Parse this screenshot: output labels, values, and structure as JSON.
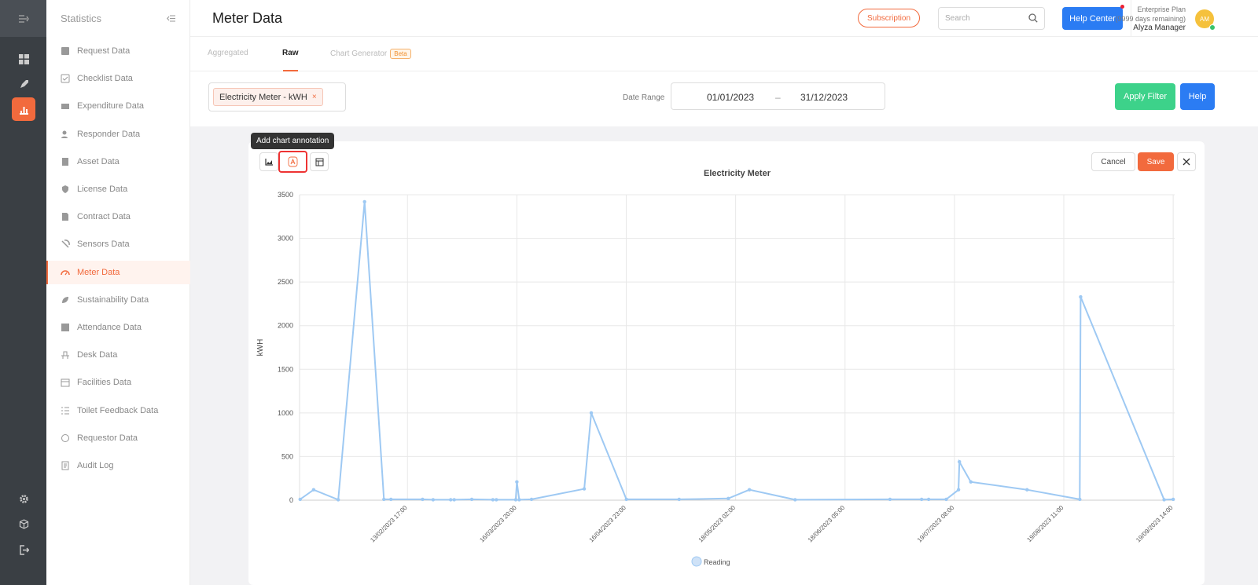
{
  "sidebar": {
    "title": "Statistics",
    "items": [
      {
        "label": "Request Data",
        "icon": "request-icon"
      },
      {
        "label": "Checklist Data",
        "icon": "checklist-icon"
      },
      {
        "label": "Expenditure Data",
        "icon": "expenditure-icon"
      },
      {
        "label": "Responder Data",
        "icon": "responder-icon"
      },
      {
        "label": "Asset Data",
        "icon": "asset-icon"
      },
      {
        "label": "License Data",
        "icon": "shield-icon"
      },
      {
        "label": "Contract Data",
        "icon": "contract-icon"
      },
      {
        "label": "Sensors Data",
        "icon": "sensor-icon"
      },
      {
        "label": "Meter Data",
        "icon": "gauge-icon",
        "active": true
      },
      {
        "label": "Sustainability Data",
        "icon": "leaf-icon"
      },
      {
        "label": "Attendance Data",
        "icon": "attendance-icon"
      },
      {
        "label": "Desk Data",
        "icon": "desk-icon"
      },
      {
        "label": "Facilities Data",
        "icon": "calendar-icon"
      },
      {
        "label": "Toilet Feedback Data",
        "icon": "list-icon"
      },
      {
        "label": "Requestor Data",
        "icon": "requestor-icon"
      },
      {
        "label": "Audit Log",
        "icon": "audit-icon"
      }
    ]
  },
  "header": {
    "title": "Meter Data",
    "subscription": "Subscription",
    "search_placeholder": "Search",
    "help_center": "Help Center",
    "plan": "Enterprise Plan",
    "plan_days": "(9999 days remaining)",
    "user": "Alyza Manager",
    "avatar": "AM"
  },
  "tabs": {
    "aggregated": "Aggregated",
    "raw": "Raw",
    "chart_generator": "Chart Generator",
    "beta": "Beta"
  },
  "filter": {
    "chip": "Electricity Meter - kWH",
    "chip_remove": "×",
    "date_range_label": "Date Range",
    "date_from": "01/01/2023",
    "date_sep": "–",
    "date_to": "31/12/2023",
    "apply": "Apply Filter",
    "help": "Help"
  },
  "chart_toolbar": {
    "tooltip": "Add chart annotation",
    "cancel": "Cancel",
    "save": "Save"
  },
  "colors": {
    "accent": "#f26a3d",
    "primary": "#2b7cf3",
    "success": "#3dd28a",
    "line": "#9ec9f3"
  },
  "chart_data": {
    "type": "line",
    "title": "Electricity Meter",
    "xlabel": "",
    "ylabel": "kWH",
    "ylim": [
      0,
      3500
    ],
    "yticks": [
      0,
      500,
      1000,
      1500,
      2000,
      2500,
      3000,
      3500
    ],
    "x_ticks": [
      "13/02/2023 17:00",
      "16/03/2023 20:00",
      "16/04/2023 23:00",
      "18/05/2023 02:00",
      "18/06/2023 05:00",
      "19/07/2023 08:00",
      "19/08/2023 11:00",
      "19/09/2023 14:00"
    ],
    "x_range": [
      "2023-01-14T00:00",
      "2023-09-20T00:00"
    ],
    "legend": [
      "Reading"
    ],
    "legend_position": "bottom",
    "grid": true,
    "series": [
      {
        "name": "Reading",
        "points": [
          {
            "x": "2023-01-14T04:00",
            "y": 10
          },
          {
            "x": "2023-01-18T00:00",
            "y": 120
          },
          {
            "x": "2023-01-25T00:00",
            "y": 5
          },
          {
            "x": "2023-02-01T12:00",
            "y": 3420
          },
          {
            "x": "2023-02-07T00:00",
            "y": 10
          },
          {
            "x": "2023-02-09T00:00",
            "y": 10
          },
          {
            "x": "2023-02-18T00:00",
            "y": 10
          },
          {
            "x": "2023-02-21T00:00",
            "y": 5
          },
          {
            "x": "2023-02-26T00:00",
            "y": 5
          },
          {
            "x": "2023-02-27T00:00",
            "y": 5
          },
          {
            "x": "2023-03-04T00:00",
            "y": 10
          },
          {
            "x": "2023-03-10T00:00",
            "y": 5
          },
          {
            "x": "2023-03-11T00:00",
            "y": 5
          },
          {
            "x": "2023-03-16T12:00",
            "y": 5
          },
          {
            "x": "2023-03-16T20:00",
            "y": 210
          },
          {
            "x": "2023-03-17T12:00",
            "y": 5
          },
          {
            "x": "2023-03-21T00:00",
            "y": 10
          },
          {
            "x": "2023-04-05T00:00",
            "y": 130
          },
          {
            "x": "2023-04-07T00:00",
            "y": 1000
          },
          {
            "x": "2023-04-17T00:00",
            "y": 10
          },
          {
            "x": "2023-05-02T00:00",
            "y": 10
          },
          {
            "x": "2023-05-16T00:00",
            "y": 20
          },
          {
            "x": "2023-05-22T00:00",
            "y": 120
          },
          {
            "x": "2023-06-04T00:00",
            "y": 5
          },
          {
            "x": "2023-07-01T00:00",
            "y": 10
          },
          {
            "x": "2023-07-10T00:00",
            "y": 10
          },
          {
            "x": "2023-07-12T00:00",
            "y": 10
          },
          {
            "x": "2023-07-17T00:00",
            "y": 10
          },
          {
            "x": "2023-07-20T12:00",
            "y": 120
          },
          {
            "x": "2023-07-20T18:00",
            "y": 440
          },
          {
            "x": "2023-07-24T00:00",
            "y": 210
          },
          {
            "x": "2023-08-09T00:00",
            "y": 120
          },
          {
            "x": "2023-08-24T00:00",
            "y": 10
          },
          {
            "x": "2023-08-24T06:00",
            "y": 2330
          },
          {
            "x": "2023-09-17T00:00",
            "y": 5
          },
          {
            "x": "2023-09-19T14:00",
            "y": 10
          }
        ]
      }
    ]
  }
}
